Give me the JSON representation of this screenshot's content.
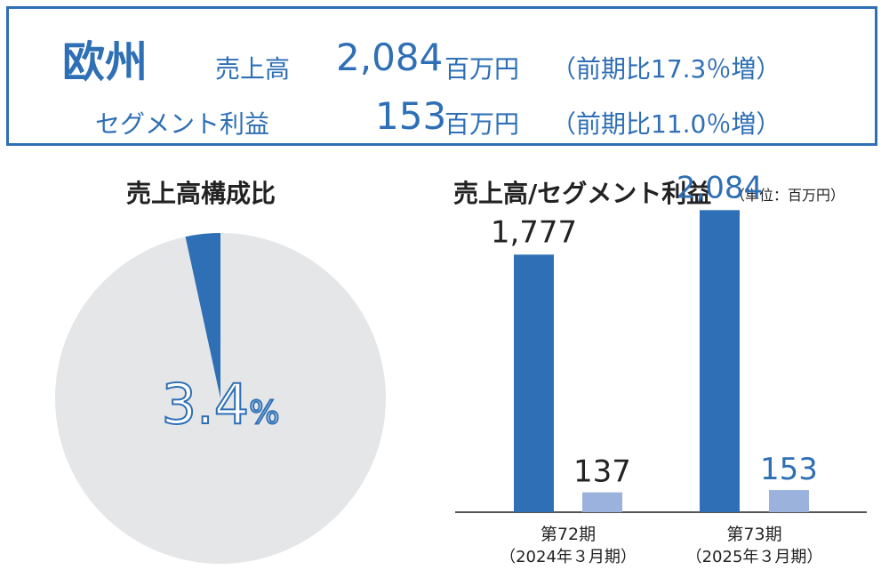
{
  "summary": {
    "region": "欧州",
    "sales_label": "売上高",
    "sales_value": "2,084",
    "sales_unit": "百万円",
    "sales_change": "（前期比17.3％増）",
    "profit_label": "セグメント利益",
    "profit_value": "153",
    "profit_unit": "百万円",
    "profit_change": "（前期比11.0％増）"
  },
  "colors": {
    "accent": "#2e6fb5",
    "profit_bar": "#9bb3dc",
    "pie_rest": "#e5e6e8"
  },
  "chart_data": [
    {
      "type": "pie",
      "title": "売上高構成比",
      "slices": [
        {
          "value": 3.4,
          "label": "3.4%"
        },
        {
          "value": 96.6,
          "label": ""
        }
      ]
    },
    {
      "type": "bar",
      "title": "売上高/セグメント利益",
      "unit_note": "（単位：百万円）",
      "categories": [
        "第72期",
        "第73期"
      ],
      "category_sub": [
        "（2024年３月期）",
        "（2025年３月期）"
      ],
      "series": [
        {
          "values": [
            1777,
            2084
          ],
          "labels": [
            "1,777",
            "2,084"
          ]
        },
        {
          "values": [
            137,
            153
          ],
          "labels": [
            "137",
            "153"
          ]
        }
      ]
    }
  ]
}
